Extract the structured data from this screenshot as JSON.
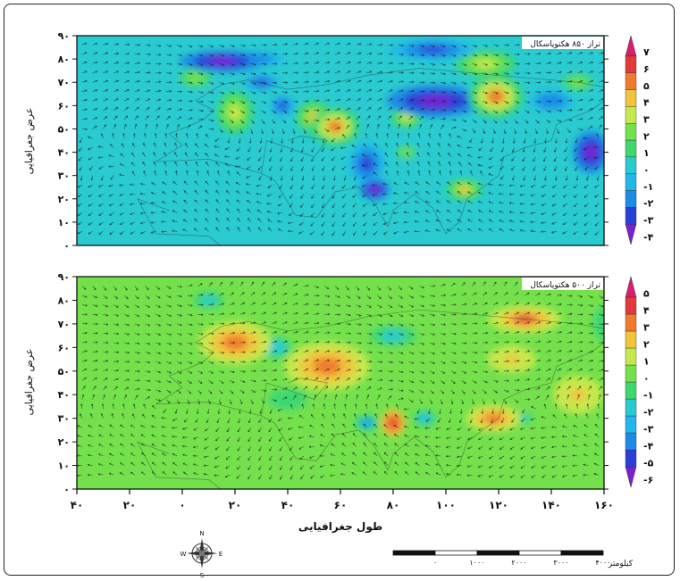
{
  "panels": [
    {
      "title": "تراز ۸۵۰ هکتوپاسکال",
      "yticks": [
        "۹۰",
        "۸۰",
        "۷۰",
        "۶۰",
        "۵۰",
        "۴۰",
        "۳۰",
        "۲۰",
        "۱۰",
        "۰"
      ],
      "colorbar": [
        "۷",
        "۶",
        "۵",
        "۴",
        "۳",
        "۲",
        "۱",
        "۰",
        "-۱",
        "-۲",
        "-۳",
        "-۴"
      ],
      "ylabel": "عرض جغرافیایی",
      "blobs": [
        {
          "lon": 15,
          "lat": 79,
          "val": -4.5,
          "rx": 14,
          "ry": 4
        },
        {
          "lon": 27,
          "lat": 80,
          "val": -2.5,
          "rx": 10,
          "ry": 3
        },
        {
          "lon": 58,
          "lat": 51,
          "val": 4.8,
          "rx": 8,
          "ry": 7
        },
        {
          "lon": 50,
          "lat": 55,
          "val": 3.5,
          "rx": 6,
          "ry": 6
        },
        {
          "lon": 20,
          "lat": 57,
          "val": 3.2,
          "rx": 6,
          "ry": 8
        },
        {
          "lon": 5,
          "lat": 72,
          "val": 2.0,
          "rx": 8,
          "ry": 6
        },
        {
          "lon": 96,
          "lat": 62,
          "val": -4.5,
          "rx": 16,
          "ry": 6
        },
        {
          "lon": 119,
          "lat": 64,
          "val": 5.2,
          "rx": 9,
          "ry": 8
        },
        {
          "lon": 115,
          "lat": 78,
          "val": 2.5,
          "rx": 10,
          "ry": 5
        },
        {
          "lon": 95,
          "lat": 84,
          "val": -3.0,
          "rx": 14,
          "ry": 4
        },
        {
          "lon": 70,
          "lat": 35,
          "val": -3.5,
          "rx": 6,
          "ry": 8
        },
        {
          "lon": 73,
          "lat": 24,
          "val": -4.0,
          "rx": 5,
          "ry": 4
        },
        {
          "lon": 107,
          "lat": 24,
          "val": 3.8,
          "rx": 6,
          "ry": 4
        },
        {
          "lon": 155,
          "lat": 40,
          "val": -4.2,
          "rx": 6,
          "ry": 8
        },
        {
          "lon": 140,
          "lat": 62,
          "val": -2.5,
          "rx": 7,
          "ry": 4
        },
        {
          "lon": 150,
          "lat": 70,
          "val": 2.0,
          "rx": 8,
          "ry": 5
        },
        {
          "lon": 30,
          "lat": 70,
          "val": -2.8,
          "rx": 6,
          "ry": 3
        },
        {
          "lon": 38,
          "lat": 60,
          "val": -3.5,
          "rx": 4,
          "ry": 4
        },
        {
          "lon": 85,
          "lat": 55,
          "val": 2.5,
          "rx": 5,
          "ry": 4
        },
        {
          "lon": 85,
          "lat": 40,
          "val": 1.5,
          "rx": 5,
          "ry": 4
        }
      ],
      "base": -0.4
    },
    {
      "title": "تراز ۵۰۰ هکتوپاسکال",
      "yticks": [
        "۹۰",
        "۸۰",
        "۷۰",
        "۶۰",
        "۵۰",
        "۴۰",
        "۳۰",
        "۲۰",
        "۱۰",
        "۰"
      ],
      "colorbar": [
        "۵",
        "۴",
        "۳",
        "۲",
        "۱",
        "۰",
        "-۱",
        "-۲",
        "-۳",
        "-۴",
        "-۵",
        "-۶"
      ],
      "ylabel": "عرض جغرافیایی",
      "blobs": [
        {
          "lon": 20,
          "lat": 62,
          "val": 2.8,
          "rx": 12,
          "ry": 8
        },
        {
          "lon": 55,
          "lat": 52,
          "val": 3.0,
          "rx": 14,
          "ry": 9
        },
        {
          "lon": 35,
          "lat": 60,
          "val": -2.5,
          "rx": 6,
          "ry": 4
        },
        {
          "lon": 130,
          "lat": 72,
          "val": 3.5,
          "rx": 12,
          "ry": 5
        },
        {
          "lon": 125,
          "lat": 55,
          "val": 2.0,
          "rx": 8,
          "ry": 5
        },
        {
          "lon": 80,
          "lat": 28,
          "val": 4.0,
          "rx": 4,
          "ry": 5
        },
        {
          "lon": 70,
          "lat": 28,
          "val": -4.5,
          "rx": 4,
          "ry": 3
        },
        {
          "lon": 92,
          "lat": 30,
          "val": -3.5,
          "rx": 4,
          "ry": 3
        },
        {
          "lon": 118,
          "lat": 30,
          "val": 2.5,
          "rx": 9,
          "ry": 5
        },
        {
          "lon": 130,
          "lat": 30,
          "val": -2.0,
          "rx": 4,
          "ry": 3
        },
        {
          "lon": 150,
          "lat": 40,
          "val": 2.0,
          "rx": 8,
          "ry": 7
        },
        {
          "lon": 10,
          "lat": 80,
          "val": -1.8,
          "rx": 8,
          "ry": 5
        },
        {
          "lon": 80,
          "lat": 65,
          "val": -1.8,
          "rx": 12,
          "ry": 6
        },
        {
          "lon": 40,
          "lat": 38,
          "val": -1.5,
          "rx": 10,
          "ry": 6
        },
        {
          "lon": 160,
          "lat": 70,
          "val": -1.0,
          "rx": 6,
          "ry": 10
        }
      ],
      "base": 0.3
    }
  ],
  "xaxis": {
    "label": "طول جغرافیایی",
    "ticks": [
      "۴۰",
      "۲۰",
      "۰",
      "۲۰",
      "۴۰",
      "۶۰",
      "۸۰",
      "۱۰۰",
      "۱۲۰",
      "۱۴۰",
      "۱۶۰"
    ]
  },
  "scalebar": {
    "unit": "کیلومتر",
    "ticks": [
      "۰",
      "۱۰۰۰",
      "۲۰۰۰",
      "۳۰۰۰",
      "۴۰۰۰"
    ]
  },
  "compass": {
    "n": "N",
    "s": "S",
    "e": "E",
    "w": "W"
  },
  "colors": {
    "ramp": [
      "#7a1fd4",
      "#2a3fd6",
      "#1e8be6",
      "#22b7ea",
      "#29cbd0",
      "#3ed86f",
      "#74e14c",
      "#c7e84b",
      "#f1c43c",
      "#f07a2e",
      "#e23a3c",
      "#d81f6e"
    ]
  }
}
